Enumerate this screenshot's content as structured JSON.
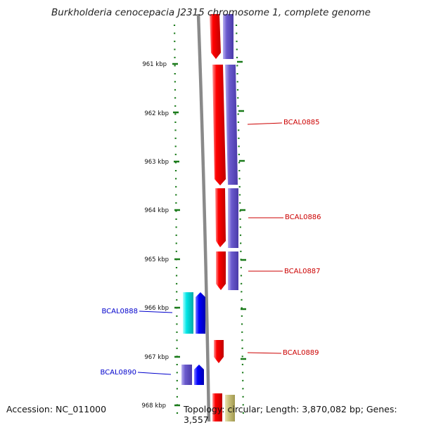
{
  "title": "Burkholderia cenocepacia J2315 chromosome 1, complete genome",
  "footer": {
    "accession": "Accession: NC_011000",
    "topology": "Topology: circular; Length: 3,870,082 bp; Genes: 3,557"
  },
  "scale_labels": [
    "961 kbp",
    "962 kbp",
    "963 kbp",
    "964 kbp",
    "965 kbp",
    "966 kbp",
    "967 kbp",
    "968 kbp"
  ],
  "gene_labels": [
    {
      "id": "BCAL0885",
      "strand": "forward"
    },
    {
      "id": "BCAL0886",
      "strand": "forward"
    },
    {
      "id": "BCAL0887",
      "strand": "forward"
    },
    {
      "id": "BCAL0888",
      "strand": "reverse"
    },
    {
      "id": "BCAL0889",
      "strand": "forward"
    },
    {
      "id": "BCAL0890",
      "strand": "reverse"
    }
  ],
  "colors": {
    "forward_label": "#cc0000",
    "reverse_label": "#0000cc",
    "forward_cds": "#ff0000",
    "forward_cog": "#6a5acd",
    "reverse_cds": "#0000ff",
    "reverse_cyan": "#00e5e5",
    "reverse_cog": "#6a5acd",
    "tick": "#1a7a1a",
    "backbone": "#888888",
    "olive": "#c8c07a"
  }
}
